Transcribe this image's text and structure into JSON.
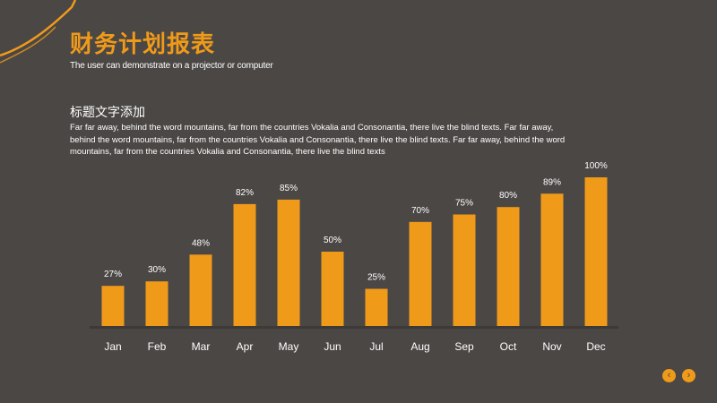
{
  "header": {
    "title": "财务计划报表",
    "subtitle": "The user can demonstrate on a projector or computer"
  },
  "section": {
    "heading": "标题文字添加",
    "body": "Far far away, behind the word mountains, far from the countries Vokalia and Consonantia, there live the blind texts. Far far away, behind the word mountains, far from the countries Vokalia and Consonantia, there live the blind texts. Far far away, behind the word mountains, far from the countries Vokalia and Consonantia, there live the blind texts"
  },
  "colors": {
    "background": "#4a4745",
    "accent": "#f09a1a"
  },
  "navigation": {
    "prev_icon": "chevron-left-icon",
    "next_icon": "chevron-right-icon"
  },
  "chart_data": {
    "type": "bar",
    "categories": [
      "Jan",
      "Feb",
      "Mar",
      "Apr",
      "May",
      "Jun",
      "Jul",
      "Aug",
      "Sep",
      "Oct",
      "Nov",
      "Dec"
    ],
    "values": [
      27,
      30,
      48,
      82,
      85,
      50,
      25,
      70,
      75,
      80,
      89,
      100
    ],
    "data_labels": [
      "27%",
      "30%",
      "48%",
      "82%",
      "85%",
      "50%",
      "25%",
      "70%",
      "75%",
      "80%",
      "89%",
      "100%"
    ],
    "ylim": [
      0,
      100
    ],
    "grid": false,
    "legend": false,
    "bar_color": "#f09a1a"
  }
}
